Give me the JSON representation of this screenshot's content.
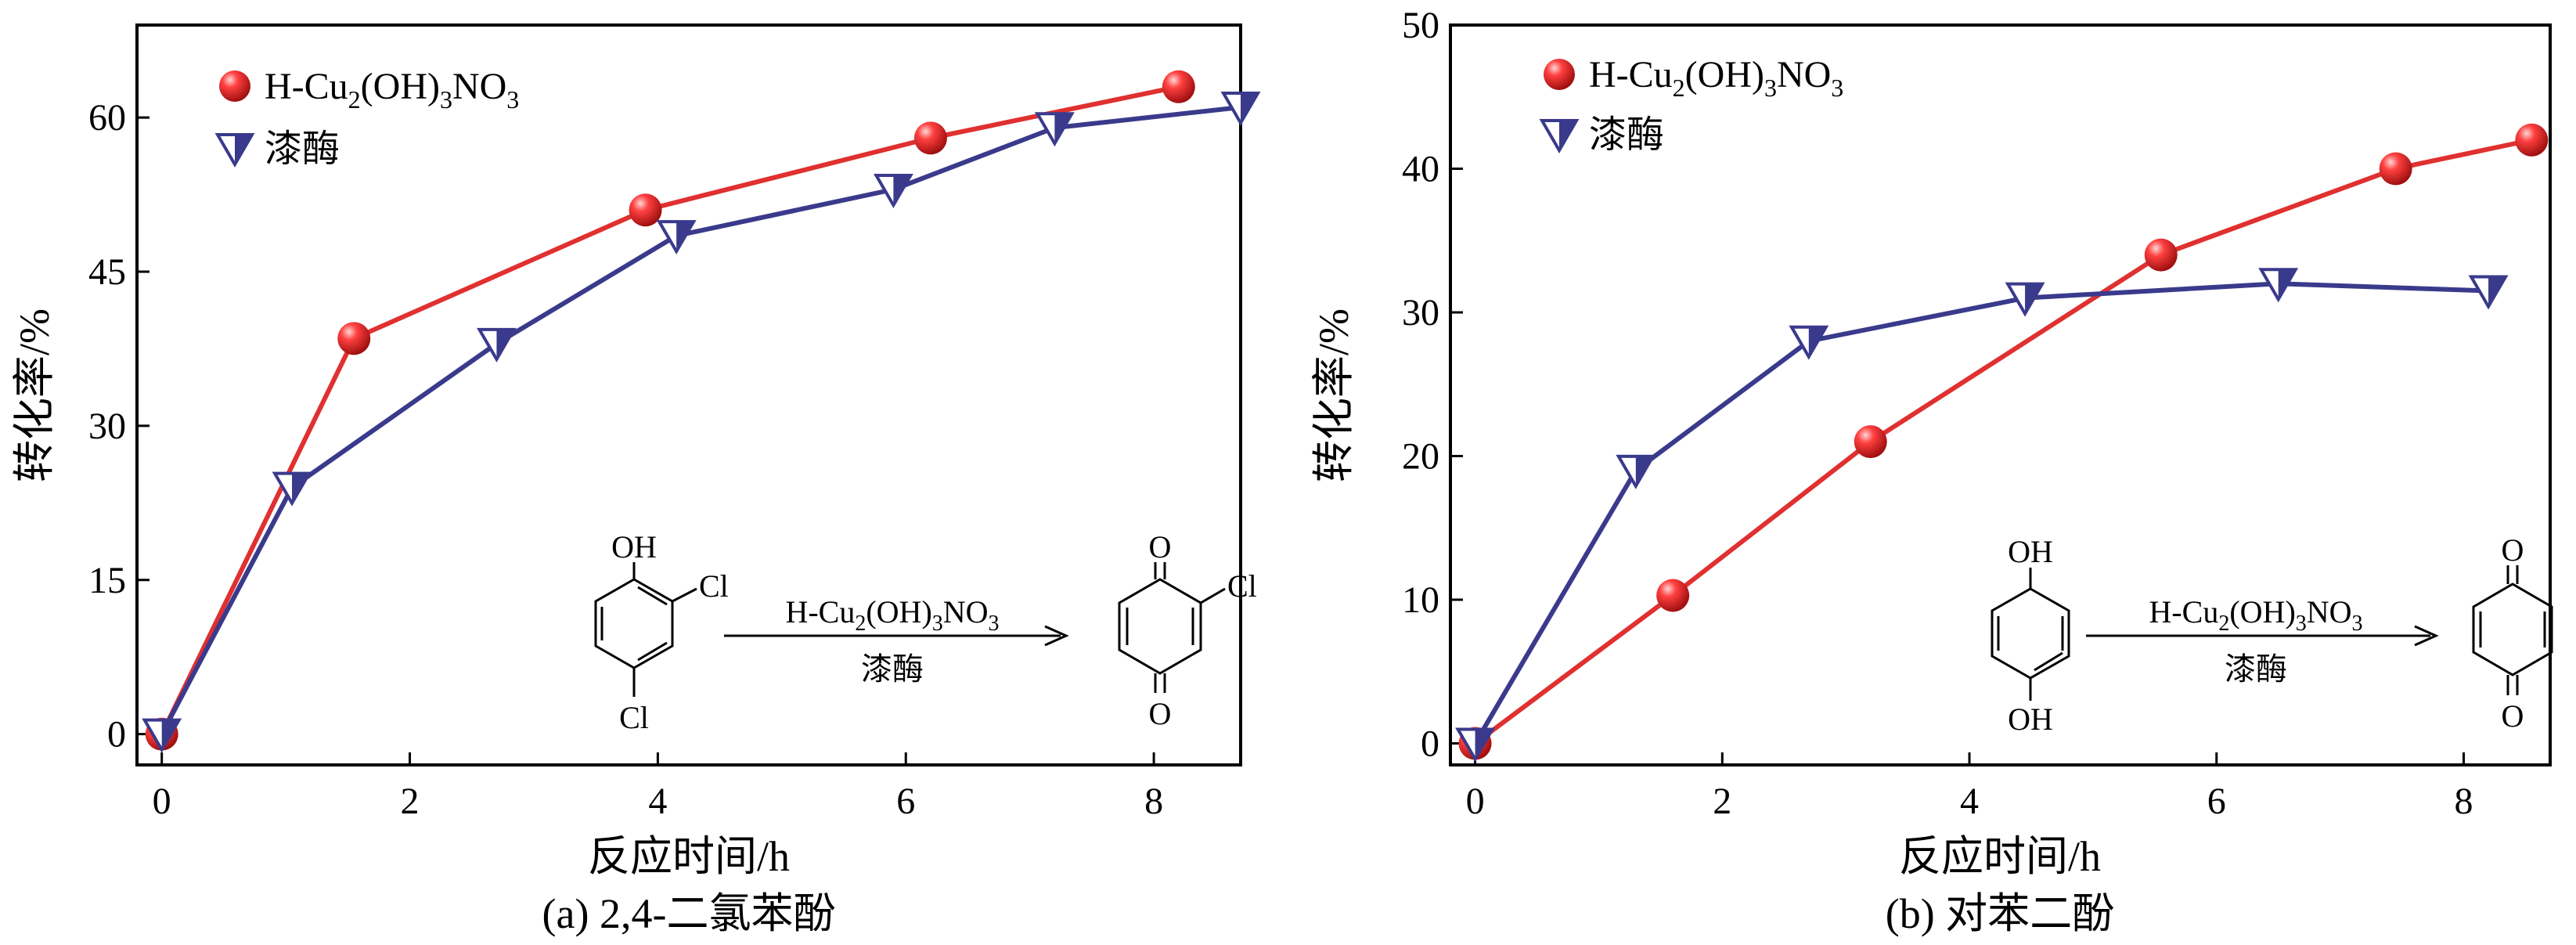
{
  "chart_data": [
    {
      "type": "line",
      "caption": "(a) 2,4-二氯苯酚",
      "xlabel": "反应时间/h",
      "ylabel": "转化率/%",
      "xlim": [
        -0.2,
        8.7
      ],
      "ylim": [
        -3,
        69
      ],
      "xticks": [
        0,
        2,
        4,
        6,
        8
      ],
      "yticks": [
        0,
        15,
        30,
        45,
        60
      ],
      "legend_position": "top-left",
      "series": [
        {
          "name": "H-Cu2(OH)3NO3",
          "marker": "sphere",
          "color": "#e03030",
          "x": [
            0,
            1.55,
            3.9,
            6.2,
            8.2
          ],
          "y": [
            0,
            38.5,
            51,
            58,
            63
          ]
        },
        {
          "name": "漆酶",
          "marker": "triangle-down",
          "color": "#3a3a8c",
          "x": [
            0,
            1.05,
            2.7,
            4.15,
            5.9,
            7.2,
            8.7
          ],
          "y": [
            0,
            24,
            38,
            48.5,
            53,
            59,
            61
          ]
        }
      ],
      "legend": {
        "item1_pre": "H-Cu",
        "item1_s1": "2",
        "item1_mid": "(OH)",
        "item1_s2": "3",
        "item1_post": "NO",
        "item1_s3": "3",
        "item2": "漆酶"
      },
      "scheme": {
        "reactant_sub_top": "OH",
        "reactant_sub_right": "Cl",
        "reactant_sub_bottom": "Cl",
        "product_sub_top": "O",
        "product_sub_right": "Cl",
        "product_sub_bottom": "O",
        "arrow_above_pre": "H-Cu",
        "arrow_above_s1": "2",
        "arrow_above_mid": "(OH)",
        "arrow_above_s2": "3",
        "arrow_above_post": "NO",
        "arrow_above_s3": "3",
        "arrow_below": "漆酶"
      }
    },
    {
      "type": "line",
      "caption": "(b) 对苯二酚",
      "xlabel": "反应时间/h",
      "ylabel": "转化率/%",
      "xlim": [
        -0.2,
        8.7
      ],
      "ylim": [
        -1.5,
        50
      ],
      "xticks": [
        0,
        2,
        4,
        6,
        8
      ],
      "yticks": [
        0,
        10,
        20,
        30,
        40,
        50
      ],
      "legend_position": "top-left",
      "series": [
        {
          "name": "H-Cu2(OH)3NO3",
          "marker": "sphere",
          "color": "#e03030",
          "x": [
            0,
            1.6,
            3.2,
            5.55,
            7.45,
            8.55
          ],
          "y": [
            0,
            10.3,
            21,
            34,
            40,
            42
          ]
        },
        {
          "name": "漆酶",
          "marker": "triangle-down",
          "color": "#3a3a8c",
          "x": [
            0,
            1.3,
            2.7,
            4.45,
            6.5,
            8.2
          ],
          "y": [
            0,
            19,
            28,
            31,
            32,
            31.5
          ]
        }
      ],
      "legend": {
        "item1_pre": "H-Cu",
        "item1_s1": "2",
        "item1_mid": "(OH)",
        "item1_s2": "3",
        "item1_post": "NO",
        "item1_s3": "3",
        "item2": "漆酶"
      },
      "scheme": {
        "reactant_sub_top": "OH",
        "reactant_sub_bottom": "OH",
        "product_sub_top": "O",
        "product_sub_bottom": "O",
        "arrow_above_pre": "H-Cu",
        "arrow_above_s1": "2",
        "arrow_above_mid": "(OH)",
        "arrow_above_s2": "3",
        "arrow_above_post": "NO",
        "arrow_above_s3": "3",
        "arrow_below": "漆酶"
      }
    }
  ]
}
